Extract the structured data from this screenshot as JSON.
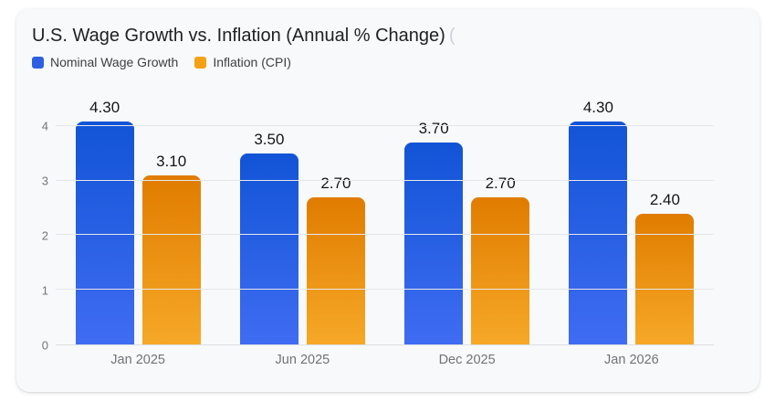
{
  "chart_data": {
    "type": "bar",
    "title": "U.S. Wage Growth vs. Inflation (Annual % Change)",
    "title_truncated_suffix": "(",
    "categories": [
      "Jan 2025",
      "Jun 2025",
      "Dec 2025",
      "Jan 2026"
    ],
    "series": [
      {
        "name": "Nominal Wage Growth",
        "values": [
          4.3,
          3.5,
          3.7,
          4.3
        ],
        "labels": [
          "4.30",
          "3.50",
          "3.70",
          "4.30"
        ],
        "swatch_color": "#2d5fe0",
        "bar_color_top": "#1254d6",
        "bar_color_bottom": "#3f6cf2"
      },
      {
        "name": "Inflation (CPI)",
        "values": [
          3.1,
          2.7,
          2.7,
          2.4
        ],
        "labels": [
          "3.10",
          "2.70",
          "2.70",
          "2.40"
        ],
        "swatch_color": "#f5a113",
        "bar_color_top": "#e07c00",
        "bar_color_bottom": "#f6a827"
      }
    ],
    "y_ticks": [
      0,
      1,
      2,
      3,
      4
    ],
    "ylim": [
      0,
      4.5
    ],
    "xlabel": "",
    "ylabel": "",
    "grid": true,
    "legend_position": "top-left",
    "value_label_color": "#111418",
    "axis_label_color": "#757575",
    "gridline_color": "#e5e7eb",
    "card_background": "#f8f9fa"
  }
}
